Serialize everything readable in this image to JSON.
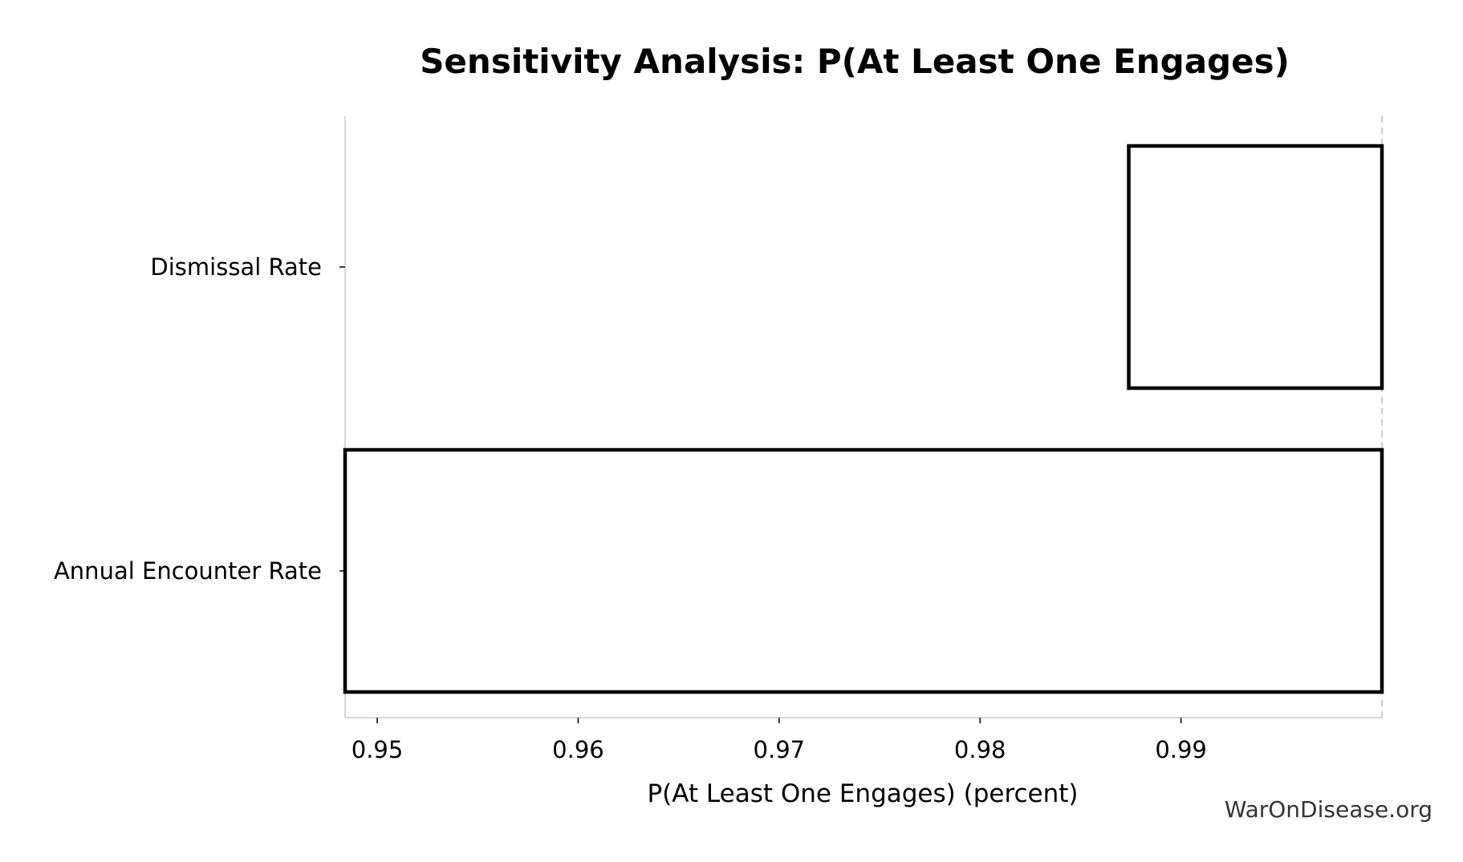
{
  "chart_data": {
    "type": "bar",
    "orientation": "horizontal",
    "style": "tornado",
    "title": "Sensitivity Analysis: P(At Least One Engages)",
    "xlabel": "P(At Least One Engages) (percent)",
    "ylabel": "",
    "xlim": [
      0.9484,
      1.0
    ],
    "xticks": [
      0.95,
      0.96,
      0.97,
      0.98,
      0.99
    ],
    "xtick_labels": [
      "0.95",
      "0.96",
      "0.97",
      "0.98",
      "0.99"
    ],
    "baseline": 1.0,
    "categories": [
      "Dismissal Rate",
      "Annual Encounter Rate"
    ],
    "bars": [
      {
        "label": "Dismissal Rate",
        "low": 0.9874,
        "high": 1.0
      },
      {
        "label": "Annual Encounter Rate",
        "low": 0.9484,
        "high": 1.0
      }
    ],
    "grid": false,
    "legend": "none",
    "colors": {
      "bar_fill": "#ffffff",
      "bar_edge": "#000000",
      "spine": "#cccccc",
      "baseline": "#bbbbbb"
    }
  },
  "watermark": "WarOnDisease.org"
}
